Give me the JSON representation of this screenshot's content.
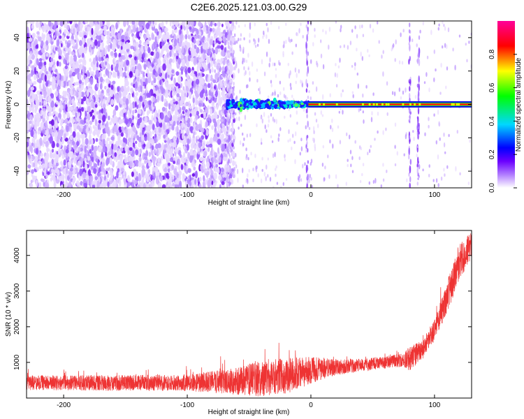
{
  "title": "C2E6.2025.121.03.00.G29",
  "chart_data": [
    {
      "type": "heatmap",
      "xlabel": "Height of straight line (km)",
      "ylabel": "Frequency (Hz)",
      "xlim": [
        -230,
        130
      ],
      "ylim": [
        -50,
        50
      ],
      "xticks": [
        -200,
        -100,
        0,
        100
      ],
      "yticks": [
        -40,
        -20,
        0,
        20,
        40
      ],
      "grid": false,
      "colorbar": {
        "label": "Normalized spectral amplitude",
        "range": [
          0,
          1
        ],
        "ticks": [
          "0.0",
          "0.2",
          "0.4",
          "0.6",
          "0.8"
        ],
        "colors": [
          "#ffffff",
          "#8a00ff",
          "#0000ff",
          "#00e5ff",
          "#00ff00",
          "#ffff00",
          "#ff0000",
          "#ff00aa"
        ]
      },
      "regions": [
        {
          "x": [
            -230,
            -68
          ],
          "description_value": "noise, amplitude 0.0-0.2, frequency spread -50..50"
        },
        {
          "x": [
            -68,
            0
          ],
          "freq": [
            -5,
            5
          ],
          "amplitude": [
            0.2,
            0.5
          ]
        },
        {
          "x": [
            0,
            130
          ],
          "freq": [
            0,
            0
          ],
          "amplitude": [
            0.8,
            0.95
          ]
        }
      ],
      "vertical_streaks_x": [
        -3,
        80,
        87
      ]
    },
    {
      "type": "line",
      "xlabel": "Height of straight line (km)",
      "ylabel": "SNR (10 * v/v)",
      "xlim": [
        -230,
        130
      ],
      "ylim": [
        0,
        4700
      ],
      "xticks": [
        -200,
        -100,
        0,
        100
      ],
      "yticks": [
        1000,
        2000,
        3000,
        4000
      ],
      "grid": false,
      "color": "#ee3333",
      "envelope": {
        "x": [
          -230,
          -150,
          -100,
          -60,
          -40,
          -20,
          0,
          20,
          40,
          60,
          75,
          80,
          90,
          100,
          110,
          120,
          130
        ],
        "center": [
          430,
          420,
          430,
          470,
          560,
          620,
          780,
          870,
          920,
          1000,
          1080,
          1110,
          1350,
          1900,
          2800,
          3800,
          4300
        ],
        "spread": [
          210,
          220,
          230,
          380,
          520,
          500,
          380,
          230,
          180,
          170,
          200,
          350,
          280,
          300,
          450,
          500,
          380
        ]
      }
    }
  ]
}
